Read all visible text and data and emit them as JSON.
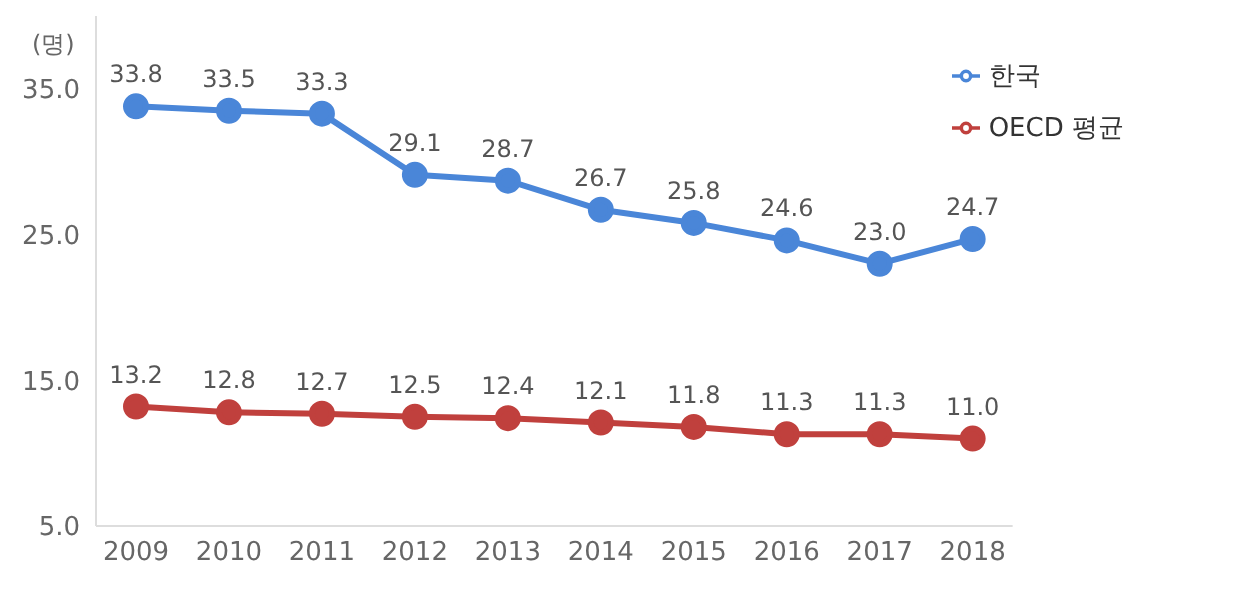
{
  "chart_data": {
    "type": "line",
    "ylabel": "(명)",
    "categories": [
      "2009",
      "2010",
      "2011",
      "2012",
      "2013",
      "2014",
      "2015",
      "2016",
      "2017",
      "2018"
    ],
    "series": [
      {
        "name": "한국",
        "color": "#4a86d8",
        "values": [
          33.8,
          33.5,
          33.3,
          29.1,
          28.7,
          26.7,
          25.8,
          24.6,
          23.0,
          24.7
        ],
        "value_labels": [
          "33.8",
          "33.5",
          "33.3",
          "29.1",
          "28.7",
          "26.7",
          "25.8",
          "24.6",
          "23.0",
          "24.7"
        ]
      },
      {
        "name": "OECD 평균",
        "color": "#c0403d",
        "values": [
          13.2,
          12.8,
          12.7,
          12.5,
          12.4,
          12.1,
          11.8,
          11.3,
          11.3,
          11.0
        ],
        "value_labels": [
          "13.2",
          "12.8",
          "12.7",
          "12.5",
          "12.4",
          "12.1",
          "11.8",
          "11.3",
          "11.3",
          "11.0"
        ]
      }
    ],
    "ylim": [
      5,
      40
    ],
    "yticks": [
      {
        "value": 5,
        "label": "5.0"
      },
      {
        "value": 15,
        "label": "15.0"
      },
      {
        "value": 25,
        "label": "25.0"
      },
      {
        "value": 35,
        "label": "35.0"
      }
    ],
    "grid": false,
    "legend": "top right",
    "marker": "circle",
    "line_style": "solid"
  }
}
